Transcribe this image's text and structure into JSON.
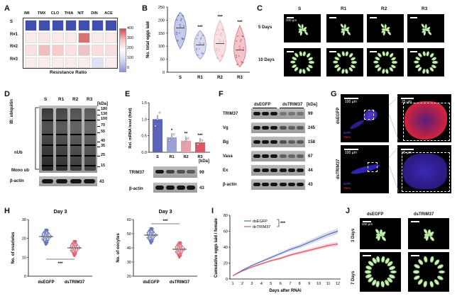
{
  "panel_letters": [
    "A",
    "B",
    "C",
    "D",
    "E",
    "F",
    "G",
    "H",
    "I",
    "J"
  ],
  "A": {
    "cols": [
      "IMI",
      "TMX",
      "CLO",
      "THIA",
      "NIT",
      "DIN",
      "ACE"
    ],
    "rows": [
      "S",
      "R#1",
      "R#2",
      "R#3"
    ],
    "xlabel": "Resistance Ratio",
    "scale_ticks": [
      "400",
      "300",
      "200",
      "100",
      "0"
    ],
    "values": [
      [
        1,
        1,
        1,
        1,
        1,
        1,
        1
      ],
      [
        3,
        5,
        4,
        4,
        290,
        3,
        4
      ],
      [
        8,
        60,
        20,
        8,
        40,
        10,
        10
      ],
      [
        2,
        2,
        2,
        2,
        2,
        18,
        2
      ]
    ]
  },
  "B": {
    "ylabel": "No. total eggs laid",
    "yticks": [
      "0",
      "50",
      "100",
      "150",
      "200",
      "250"
    ],
    "groups": [
      "S",
      "R#1",
      "R#2",
      "R#3"
    ],
    "sig": [
      "",
      "***",
      "***",
      "***"
    ],
    "medians": [
      170,
      105,
      110,
      85
    ]
  },
  "C": {
    "cols": [
      "S",
      "R#1",
      "R#2",
      "R#3"
    ],
    "rows": [
      "5 Days",
      "10 Days"
    ],
    "scale": "200 µm"
  },
  "D": {
    "lanes": [
      "S",
      "R#1",
      "R#2",
      "R#3"
    ],
    "kda_label": "[kDa]",
    "kda": [
      "180",
      "130",
      "100",
      "70",
      "55",
      "40",
      "35",
      "25",
      "15"
    ],
    "left_labels": [
      "IB: ubiquitin",
      "nUb",
      "Mono ub"
    ],
    "actin": "β-actin",
    "actin_kda": "43"
  },
  "E": {
    "ylabel": "Rel. mRNA level (fold)",
    "yticks": [
      "0.0",
      "0.5",
      "1.0",
      "1.5"
    ],
    "groups": [
      "S",
      "R#1",
      "R#2",
      "R#3"
    ],
    "values": [
      1.0,
      0.45,
      0.35,
      0.3
    ],
    "sig": [
      "",
      "*",
      "**",
      "***"
    ],
    "blots": [
      {
        "name": "TRIM37",
        "kda": "99"
      },
      {
        "name": "β-actin",
        "kda": "43"
      }
    ],
    "kda_label": "[kDa]"
  },
  "F": {
    "lanes": [
      "dsEGFP",
      "dsTRIM37"
    ],
    "kda_label": "[kDa]",
    "proteins": [
      {
        "name": "TRIM37",
        "kda": "99"
      },
      {
        "name": "Vg",
        "kda": "245"
      },
      {
        "name": "Bg",
        "kda": "158"
      },
      {
        "name": "Vasa",
        "kda": "67"
      },
      {
        "name": "Ex",
        "kda": "44"
      },
      {
        "name": "β-actin",
        "kda": "43"
      }
    ]
  },
  "G": {
    "rows": [
      "dsEGFP",
      "dsTRIM37"
    ],
    "scale_left": "100 µm",
    "scale_right": "25 µm",
    "dapi": "DAPI",
    "vasa": "Vasa"
  },
  "H": {
    "plots": [
      {
        "title": "Day 3",
        "ylabel": "No. of ovarioles",
        "yticks": [
          "0",
          "10",
          "20",
          "30"
        ],
        "groups": [
          "dsEGFP",
          "dsTRIM37"
        ],
        "means": [
          21,
          15
        ],
        "sig": "***"
      },
      {
        "title": "Day 3",
        "ylabel": "No. of oocytes",
        "yticks": [
          "20",
          "30",
          "40",
          "50",
          "60"
        ],
        "groups": [
          "dsEGFP",
          "dsTRIM37"
        ],
        "means": [
          49,
          39
        ],
        "sig": "***"
      }
    ]
  },
  "I": {
    "ylabel": "Cumulative eggs laid / female",
    "xlabel": "Days after RNAi",
    "xticks": [
      "1",
      "2",
      "3",
      "4",
      "5",
      "6",
      "7",
      "8",
      "9",
      "10",
      "11",
      "12"
    ],
    "yticks": [
      "0",
      "20",
      "40",
      "60",
      "80"
    ],
    "series": [
      {
        "name": "dsEGFP",
        "color": "#5b6bb5",
        "values": [
          4,
          11,
          17,
          22,
          27,
          32,
          37,
          41,
          46,
          51,
          56,
          60
        ]
      },
      {
        "name": "dsTRIM37",
        "color": "#d9586a",
        "values": [
          4,
          10,
          15,
          19,
          23,
          26,
          30,
          33,
          36,
          39,
          42,
          44
        ]
      }
    ],
    "sig": "***"
  },
  "J": {
    "cols": [
      "dsEGFP",
      "dsTRIM37"
    ],
    "rows": [
      "3 Days",
      "7 Days"
    ],
    "scale": "200 µm"
  }
}
